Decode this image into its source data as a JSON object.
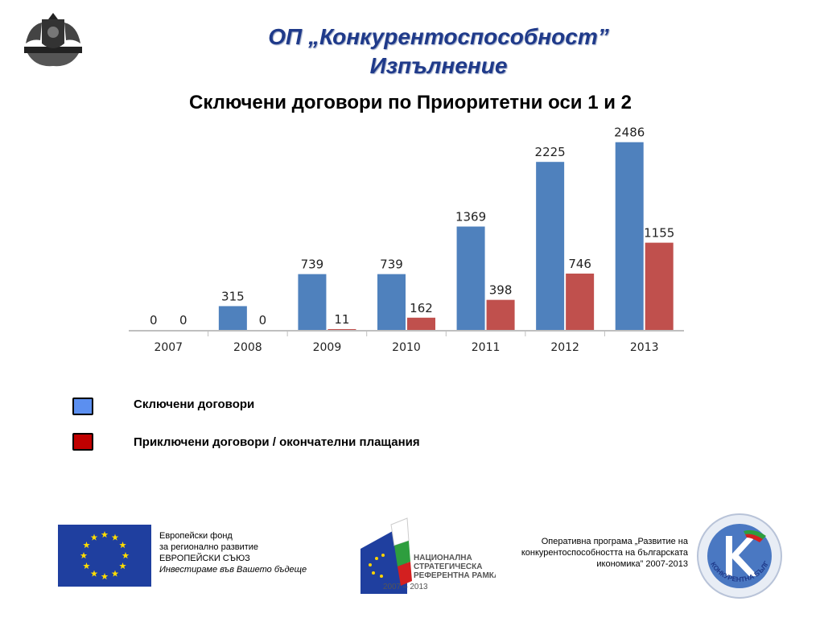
{
  "header": {
    "title_line1": "ОП „Конкурентоспособност”",
    "title_line2": "Изпълнение",
    "chart_title": "Сключени договори по Приоритетни оси 1 и 2"
  },
  "chart_data": {
    "type": "bar",
    "title": "Сключени договори по Приоритетни оси 1 и 2",
    "categories": [
      "2007",
      "2008",
      "2009",
      "2010",
      "2011",
      "2012",
      "2013"
    ],
    "series": [
      {
        "name": "Сключени договори",
        "values": [
          0,
          315,
          739,
          739,
          1369,
          2225,
          2486
        ],
        "color": "#4f81bd"
      },
      {
        "name": "Приключени договори / окончателни плащания",
        "values": [
          0,
          0,
          11,
          162,
          398,
          746,
          1155
        ],
        "color": "#c0504d"
      }
    ],
    "ylim": [
      0,
      2600
    ],
    "grid": false,
    "legend_position": "bottom-left"
  },
  "legend": {
    "items": [
      {
        "label": "Сключени договори",
        "color": "#5b8ff0"
      },
      {
        "label": "Приключени договори / окончателни плащания",
        "color": "#c00000"
      }
    ]
  },
  "footer": {
    "eu": {
      "line1": "Европейски фонд",
      "line2": "за регионално развитие",
      "line3": "ЕВРОПЕЙСКИ СЪЮЗ",
      "line4": "Инвестираме във Вашето бъдеще"
    },
    "nsrf": {
      "line1": "НАЦИОНАЛНА",
      "line2": "СТРАТЕГИЧЕСКА",
      "line3": "РЕФЕРЕНТНА РАМКА",
      "line4": "2007 – 2013"
    },
    "op": {
      "line1": "Оперативна програма „Развитие на",
      "line2": "конкурентоспособността на българската",
      "line3": "икономика” 2007-2013"
    },
    "logo_text": "КОНКУРЕНТНА БЪЛГАРИЯ"
  }
}
